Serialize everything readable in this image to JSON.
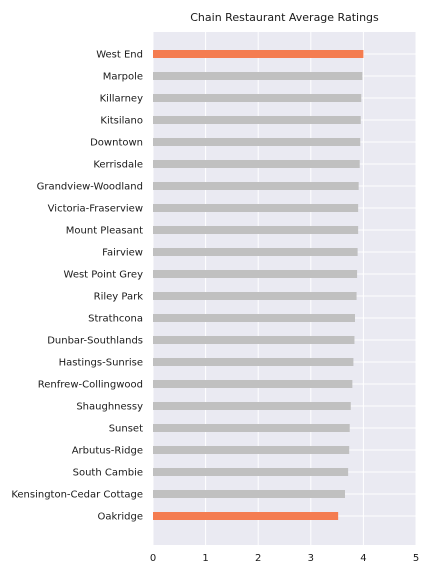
{
  "chart_data": {
    "type": "bar",
    "orientation": "horizontal",
    "title": "Chain Restaurant Average Ratings",
    "xlabel": "",
    "ylabel": "",
    "xlim": [
      0,
      5
    ],
    "xticks": [
      "0",
      "1",
      "2",
      "3",
      "4",
      "5"
    ],
    "grid": true,
    "categories": [
      "West End",
      "Marpole",
      "Killarney",
      "Kitsilano",
      "Downtown",
      "Kerrisdale",
      "Grandview-Woodland",
      "Victoria-Fraserview",
      "Mount Pleasant",
      "Fairview",
      "West Point Grey",
      "Riley Park",
      "Strathcona",
      "Dunbar-Southlands",
      "Hastings-Sunrise",
      "Renfrew-Collingwood",
      "Shaughnessy",
      "Sunset",
      "Arbutus-Ridge",
      "South Cambie",
      "Kensington-Cedar Cottage",
      "Oakridge"
    ],
    "values": [
      4.0,
      3.98,
      3.96,
      3.95,
      3.94,
      3.93,
      3.91,
      3.9,
      3.9,
      3.89,
      3.88,
      3.87,
      3.84,
      3.83,
      3.81,
      3.79,
      3.76,
      3.74,
      3.73,
      3.71,
      3.65,
      3.52
    ],
    "highlight": [
      "West End",
      "Oakridge"
    ],
    "colors": {
      "background": "#eaeaf2",
      "bar": "#c0c0c0",
      "highlight": "#f47c50"
    }
  }
}
